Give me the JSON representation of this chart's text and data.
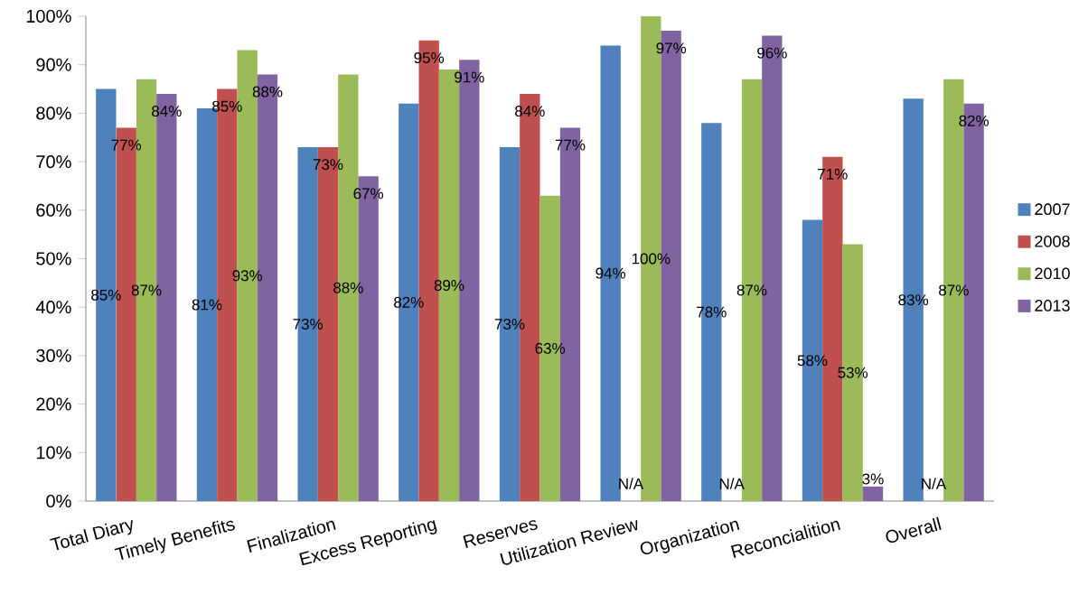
{
  "chart_data": {
    "type": "bar",
    "categories": [
      "Total Diary",
      "Timely Benefits",
      "Finalization",
      "Excess Reporting",
      "Reserves",
      "Utilization Review",
      "Organization",
      "Reconcialition",
      "Overall"
    ],
    "series": [
      {
        "name": "2007",
        "color": "#4f81bd",
        "values": [
          85,
          81,
          73,
          82,
          73,
          94,
          78,
          58,
          83
        ],
        "value_labels": [
          "85%",
          "81%",
          "73%",
          "82%",
          "73%",
          "94%",
          "78%",
          "58%",
          "83%"
        ]
      },
      {
        "name": "2008",
        "color": "#c0504d",
        "values": [
          77,
          85,
          73,
          95,
          84,
          null,
          null,
          71,
          null
        ],
        "value_labels": [
          "77%",
          "85%",
          "73%",
          "95%",
          "84%",
          "N/A",
          "N/A",
          "71%",
          "N/A"
        ]
      },
      {
        "name": "2010",
        "color": "#9bbb59",
        "values": [
          87,
          93,
          88,
          89,
          63,
          100,
          87,
          53,
          87
        ],
        "value_labels": [
          "87%",
          "93%",
          "88%",
          "89%",
          "63%",
          "100%",
          "87%",
          "53%",
          "87%"
        ]
      },
      {
        "name": "2013",
        "color": "#8064a2",
        "values": [
          84,
          88,
          67,
          91,
          77,
          97,
          96,
          3,
          82
        ],
        "value_labels": [
          "84%",
          "88%",
          "67%",
          "91%",
          "77%",
          "97%",
          "96%",
          "3%",
          "82%"
        ]
      }
    ],
    "ylim": [
      0,
      100
    ],
    "yticks": [
      {
        "value": 0,
        "label": "0%"
      },
      {
        "value": 10,
        "label": "10%"
      },
      {
        "value": 20,
        "label": "20%"
      },
      {
        "value": 30,
        "label": "30%"
      },
      {
        "value": 40,
        "label": "40%"
      },
      {
        "value": 50,
        "label": "50%"
      },
      {
        "value": 60,
        "label": "60%"
      },
      {
        "value": 70,
        "label": "70%"
      },
      {
        "value": 80,
        "label": "80%"
      },
      {
        "value": 90,
        "label": "90%"
      },
      {
        "value": 100,
        "label": "100%"
      }
    ],
    "legend": "right"
  }
}
